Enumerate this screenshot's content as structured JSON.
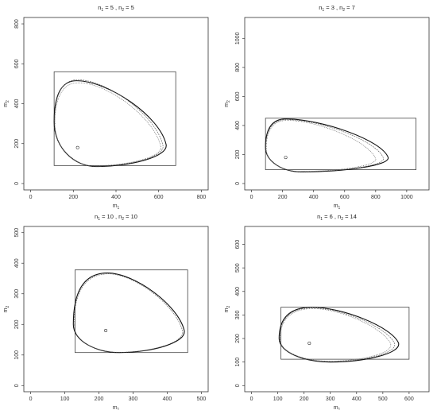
{
  "chart_data": [
    {
      "type": "line",
      "title": {
        "main_a": "n",
        "sub_a": "1",
        "mid": " = 5 , n",
        "sub_b": "2",
        "tail": " = 5"
      },
      "xlabel": {
        "main": "m",
        "sub": "1"
      },
      "ylabel": {
        "main": "m",
        "sub": "2"
      },
      "xlim": [
        0,
        800
      ],
      "ylim": [
        0,
        800
      ],
      "xticks": [
        0,
        200,
        400,
        600,
        800
      ],
      "yticks": [
        0,
        200,
        400,
        600,
        800
      ],
      "grid": false,
      "center_point": {
        "x": 220,
        "y": 180
      },
      "rectangle": {
        "x": [
          110,
          680
        ],
        "y": [
          90,
          560
        ]
      },
      "contour": {
        "left_x": 110,
        "right_x": 635,
        "bottom_y": 85,
        "top_y": 515,
        "top_x": 215,
        "right_y": 195,
        "left_y": 310
      },
      "series": [
        {
          "values": [
            [
              110,
              310
            ],
            [
              215,
              515
            ],
            [
              635,
              195
            ],
            [
              305,
              85
            ]
          ]
        },
        {
          "values": [
            [
              112,
              305
            ],
            [
              220,
              520
            ],
            [
              620,
              190
            ],
            [
              300,
              87
            ]
          ]
        },
        {
          "values": [
            [
              114,
              300
            ],
            [
              225,
              505
            ],
            [
              610,
              185
            ],
            [
              295,
              89
            ]
          ]
        }
      ]
    },
    {
      "type": "line",
      "title": {
        "main_a": "n",
        "sub_a": "1",
        "mid": " = 3 , n",
        "sub_b": "2",
        "tail": " = 7"
      },
      "xlabel": {
        "main": "m",
        "sub": "1"
      },
      "ylabel": {
        "main": "m",
        "sub": "2"
      },
      "xlim": [
        0,
        1100
      ],
      "ylim": [
        0,
        1100
      ],
      "xticks": [
        0,
        200,
        400,
        600,
        800,
        1000
      ],
      "yticks": [
        0,
        200,
        400,
        600,
        800,
        1000
      ],
      "grid": false,
      "center_point": {
        "x": 220,
        "y": 180
      },
      "rectangle": {
        "x": [
          90,
          1060
        ],
        "y": [
          95,
          450
        ]
      },
      "contour": {
        "left_x": 90,
        "right_x": 880,
        "bottom_y": 80,
        "top_y": 445,
        "top_x": 220,
        "right_y": 180,
        "left_y": 250
      },
      "series": [
        {
          "values": [
            [
              90,
              250
            ],
            [
              220,
              445
            ],
            [
              880,
              180
            ],
            [
              320,
              80
            ]
          ]
        },
        {
          "values": [
            [
              92,
              245
            ],
            [
              225,
              440
            ],
            [
              850,
              175
            ],
            [
              315,
              82
            ]
          ]
        },
        {
          "values": [
            [
              95,
              240
            ],
            [
              230,
              435
            ],
            [
              800,
              170
            ],
            [
              310,
              84
            ]
          ]
        }
      ]
    },
    {
      "type": "line",
      "title": {
        "main_a": "n",
        "sub_a": "1",
        "mid": " = 10 , n",
        "sub_b": "2",
        "tail": " = 10"
      },
      "xlabel": {
        "main": "m",
        "sub": "1"
      },
      "ylabel": {
        "main": "m",
        "sub": "2"
      },
      "xlim": [
        0,
        500
      ],
      "ylim": [
        0,
        500
      ],
      "xticks": [
        0,
        100,
        200,
        300,
        400,
        500
      ],
      "yticks": [
        0,
        100,
        200,
        300,
        400,
        500
      ],
      "grid": false,
      "center_point": {
        "x": 220,
        "y": 180
      },
      "rectangle": {
        "x": [
          130,
          460
        ],
        "y": [
          108,
          378
        ]
      },
      "contour": {
        "left_x": 125,
        "right_x": 450,
        "bottom_y": 108,
        "top_y": 368,
        "top_x": 225,
        "right_y": 180,
        "left_y": 200
      },
      "series": [
        {
          "values": [
            [
              125,
              200
            ],
            [
              225,
              368
            ],
            [
              450,
              180
            ],
            [
              260,
              108
            ]
          ]
        },
        {
          "values": [
            [
              127,
              198
            ],
            [
              228,
              365
            ],
            [
              445,
              178
            ],
            [
              258,
              109
            ]
          ]
        }
      ]
    },
    {
      "type": "line",
      "title": {
        "main_a": "n",
        "sub_a": "1",
        "mid": " = 6 , n",
        "sub_b": "2",
        "tail": " = 14"
      },
      "xlabel": {
        "main": "m",
        "sub": "1"
      },
      "ylabel": {
        "main": "m",
        "sub": "2"
      },
      "xlim": [
        0,
        650
      ],
      "ylim": [
        0,
        650
      ],
      "xticks": [
        0,
        100,
        200,
        300,
        400,
        500,
        600
      ],
      "yticks": [
        0,
        100,
        200,
        300,
        400,
        500,
        600
      ],
      "grid": false,
      "center_point": {
        "x": 220,
        "y": 180
      },
      "rectangle": {
        "x": [
          112,
          600
        ],
        "y": [
          112,
          333
        ]
      },
      "contour": {
        "left_x": 105,
        "right_x": 560,
        "bottom_y": 100,
        "top_y": 333,
        "top_x": 230,
        "right_y": 180,
        "left_y": 200
      },
      "series": [
        {
          "values": [
            [
              105,
              200
            ],
            [
              230,
              333
            ],
            [
              560,
              180
            ],
            [
              300,
              100
            ]
          ]
        },
        {
          "values": [
            [
              107,
              198
            ],
            [
              232,
              330
            ],
            [
              545,
              178
            ],
            [
              298,
              102
            ]
          ]
        },
        {
          "values": [
            [
              109,
              196
            ],
            [
              235,
              327
            ],
            [
              530,
              176
            ],
            [
              296,
              104
            ]
          ]
        }
      ]
    }
  ]
}
